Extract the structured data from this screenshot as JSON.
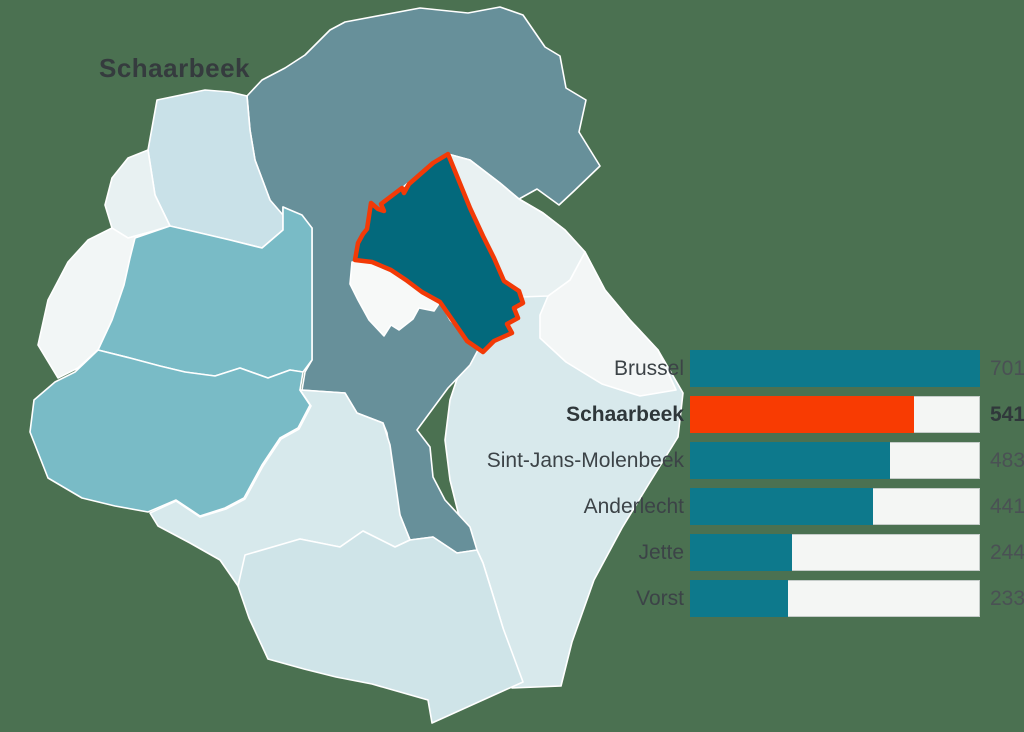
{
  "background_color": "#4b7151",
  "map": {
    "title": "Schaarbeek",
    "highlight_region": "Schaarbeek",
    "palette": {
      "highlight_fill": "#03697c",
      "highlight_outline": "#f23a07",
      "dark_slate": "#67909a",
      "medium_teal": "#79bbc6",
      "light_blue": "#c9e1e8",
      "pale_blue": "#d8e9ec",
      "near_white": "#f3f6f6",
      "border_white": "#ffffff"
    }
  },
  "chart_data": {
    "type": "bar",
    "orientation": "horizontal",
    "categories": [
      "Brussel",
      "Schaarbeek",
      "Sint-Jans-Molenbeek",
      "Anderlecht",
      "Jette",
      "Vorst"
    ],
    "values": [
      701,
      541,
      483,
      441,
      244,
      233
    ],
    "max_value": 701,
    "highlight_category": "Schaarbeek",
    "bar_color": "#0d798c",
    "highlight_color": "#f83b02",
    "track_color": "#f4f6f4",
    "value_label_position": "right",
    "legend": "none",
    "grid": "off"
  }
}
